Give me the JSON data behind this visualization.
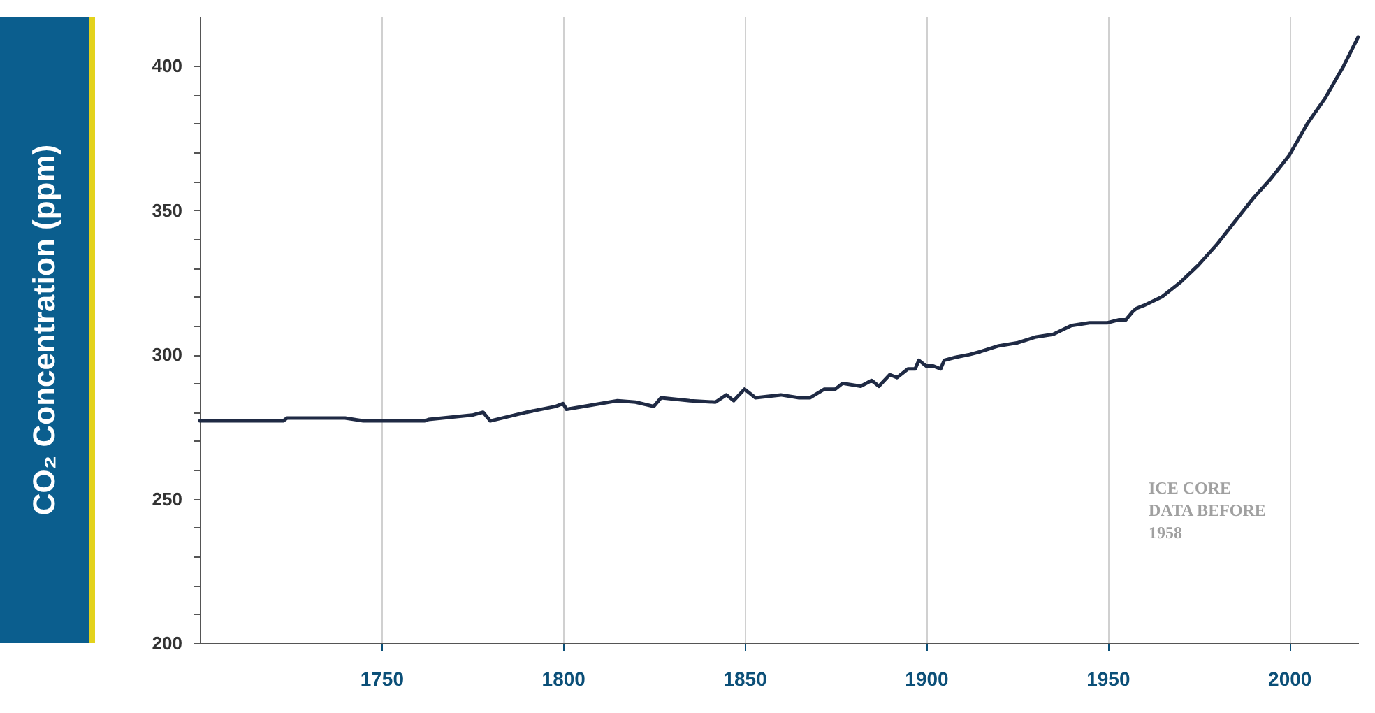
{
  "chart_data": {
    "type": "line",
    "ylabel": "CO₂ Concentration (ppm)",
    "x": [
      1700,
      1723,
      1724,
      1740,
      1745,
      1762,
      1763,
      1775,
      1778,
      1780,
      1790,
      1798,
      1800,
      1801,
      1815,
      1820,
      1825,
      1827,
      1835,
      1842,
      1845,
      1847,
      1850,
      1853,
      1860,
      1865,
      1868,
      1872,
      1875,
      1877,
      1882,
      1885,
      1887,
      1890,
      1892,
      1895,
      1897,
      1898,
      1900,
      1902,
      1904,
      1905,
      1908,
      1912,
      1915,
      1920,
      1925,
      1930,
      1935,
      1940,
      1945,
      1950,
      1953,
      1955,
      1957,
      1958,
      1960,
      1965,
      1970,
      1975,
      1980,
      1985,
      1990,
      1995,
      2000,
      2005,
      2010,
      2015,
      2019
    ],
    "series": [
      {
        "color": "#1f2a44",
        "values": [
          277,
          277,
          278,
          278,
          277,
          277,
          277.5,
          279,
          280,
          277,
          280,
          282,
          283,
          281,
          284,
          283.5,
          282,
          285,
          284,
          283.5,
          286,
          284,
          288,
          285,
          286,
          285,
          285,
          288,
          288,
          290,
          289,
          291,
          289,
          293,
          292,
          295,
          295,
          298,
          296,
          296,
          295,
          298,
          299,
          300,
          301,
          303,
          304,
          306,
          307,
          310,
          311,
          311,
          312,
          312,
          315,
          316,
          317,
          320,
          325,
          331,
          338,
          346,
          354,
          361,
          369,
          380,
          389,
          400,
          410
        ]
      }
    ],
    "xlim": [
      1700,
      2019
    ],
    "xticks": [
      1750,
      1800,
      1850,
      1900,
      1950,
      2000
    ],
    "ylim": [
      200,
      417
    ],
    "yticks": [
      200,
      {
        "value": 210,
        "label": null
      },
      {
        "value": 220,
        "label": null
      },
      {
        "value": 230,
        "label": null
      },
      {
        "value": 240,
        "label": null
      },
      250,
      {
        "value": 260,
        "label": null
      },
      {
        "value": 270,
        "label": null
      },
      {
        "value": 280,
        "label": null
      },
      {
        "value": 290,
        "label": null
      },
      300,
      {
        "value": 310,
        "label": null
      },
      {
        "value": 320,
        "label": null
      },
      {
        "value": 330,
        "label": null
      },
      {
        "value": 340,
        "label": null
      },
      350,
      {
        "value": 360,
        "label": null
      },
      {
        "value": 370,
        "label": null
      },
      {
        "value": 380,
        "label": null
      },
      {
        "value": 390,
        "label": null
      },
      400
    ],
    "grid": "x",
    "marker": "none",
    "line_style": "solid",
    "annotations": [
      "ICE CORE\nDATA BEFORE\n1958"
    ]
  }
}
